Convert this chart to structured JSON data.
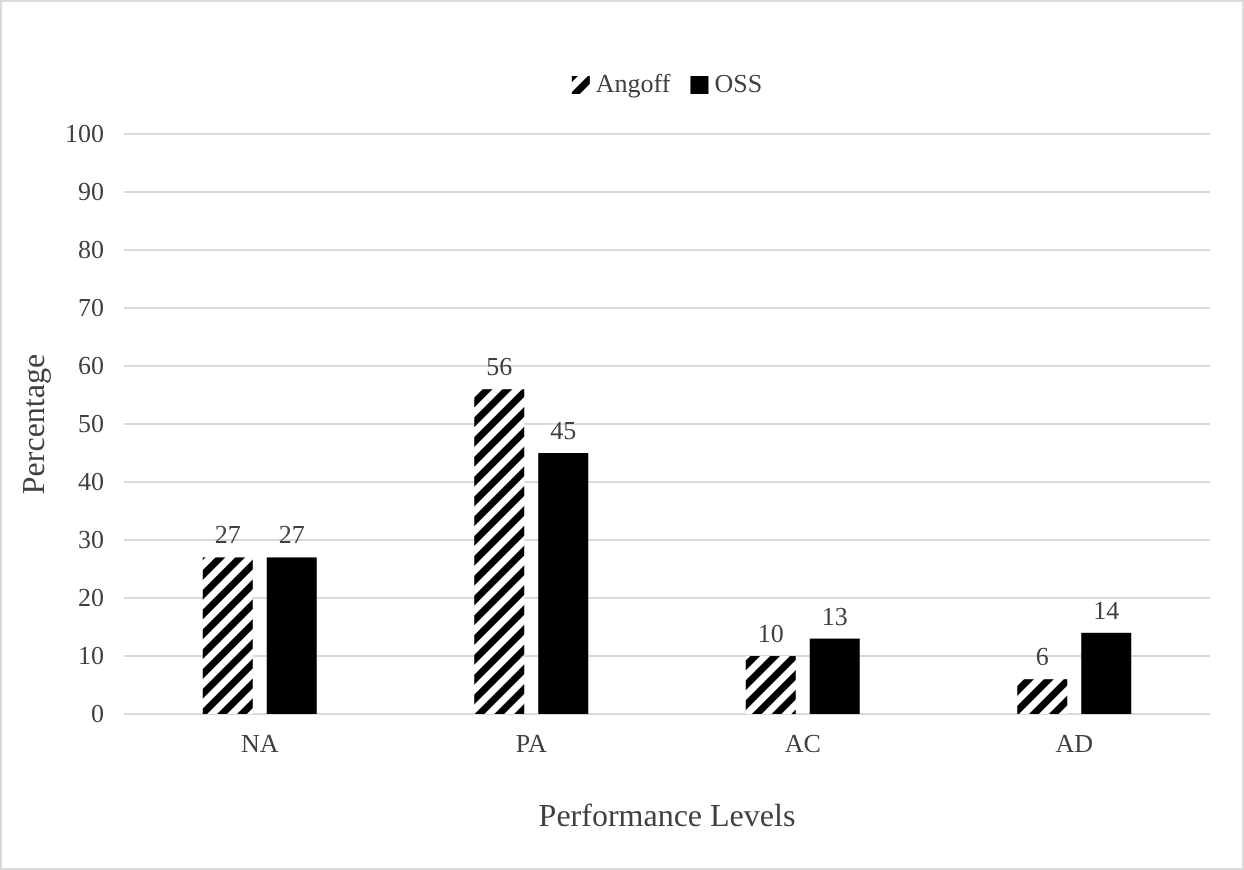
{
  "chart_data": {
    "type": "bar",
    "xlabel": "Performance Levels",
    "ylabel": "Percentage",
    "categories": [
      "NA",
      "PA",
      "AC",
      "AD"
    ],
    "series": [
      {
        "name": "Angoff",
        "color": "#000000",
        "values": [
          27,
          56,
          10,
          6
        ]
      },
      {
        "name": "OSS",
        "color": "#000000",
        "values": [
          27,
          45,
          13,
          14
        ]
      }
    ],
    "ylim": [
      0,
      100
    ],
    "yticks": [
      0,
      10,
      20,
      30,
      40,
      50,
      60,
      70,
      80,
      90,
      100
    ],
    "grid": "y",
    "legend": "top",
    "data_labels": true
  }
}
